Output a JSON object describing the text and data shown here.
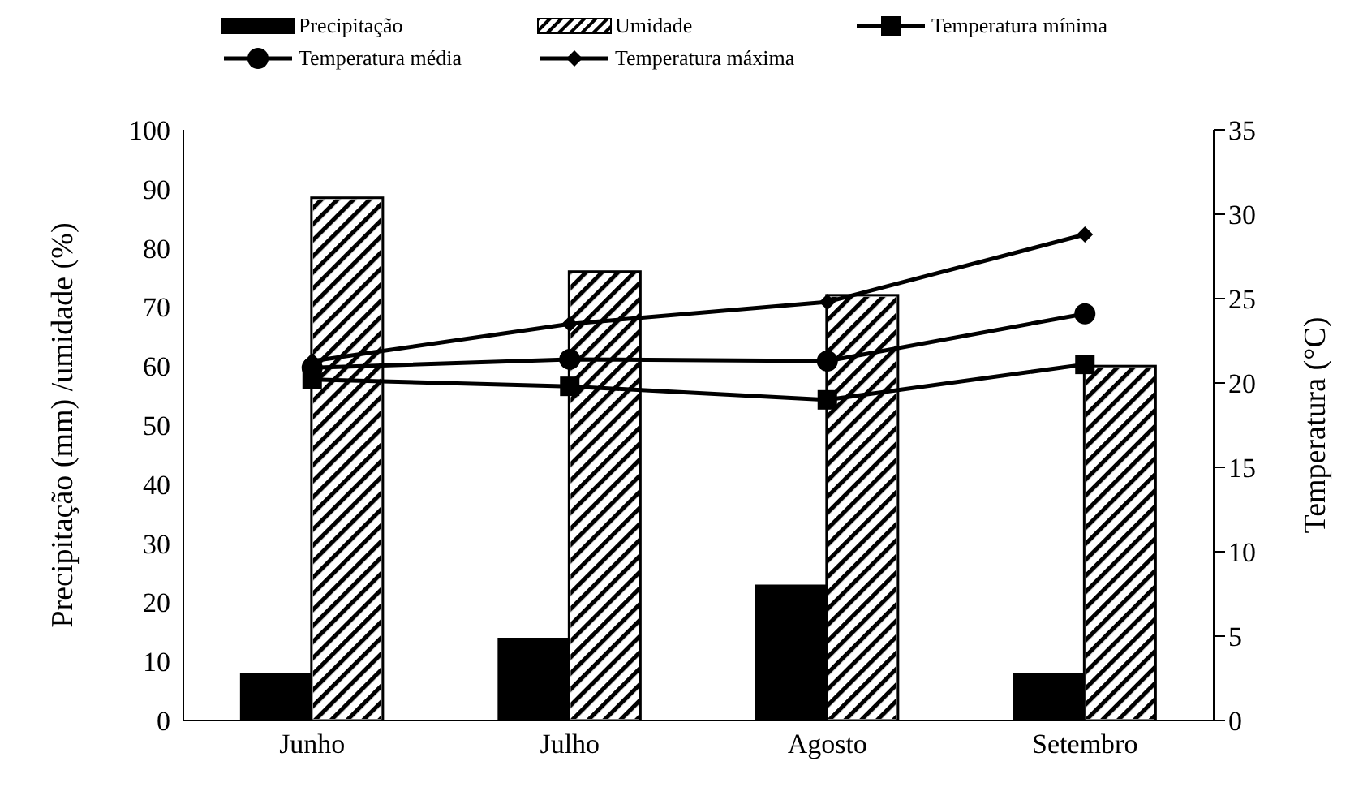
{
  "chart_data": {
    "type": "bar",
    "categories": [
      "Junho",
      "Julho",
      "Agosto",
      "Setembro"
    ],
    "ylabel": "Precipitação (mm) /umidade (%)",
    "y2label": "Temperatura (°C)",
    "ylim": [
      0,
      100
    ],
    "yticks": [
      0,
      10,
      20,
      30,
      40,
      50,
      60,
      70,
      80,
      90,
      100
    ],
    "y2lim": [
      0,
      35
    ],
    "y2ticks": [
      0,
      5,
      10,
      15,
      20,
      25,
      30,
      35
    ],
    "legend": "top",
    "series": [
      {
        "name": "Precipitação",
        "color": "#000000",
        "values": [
          8,
          14,
          23,
          8
        ]
      },
      {
        "name": "Umidade",
        "color": "#ffffff",
        "values": [
          88.5,
          76,
          72,
          60
        ]
      },
      {
        "name": "Temperatura mínima",
        "type": "line",
        "axis": "y2",
        "marker": "square",
        "color": "#000000",
        "values": [
          20.2,
          19.8,
          19.0,
          21.1
        ]
      },
      {
        "name": "Temperatura média",
        "type": "line",
        "axis": "y2",
        "marker": "circle",
        "color": "#000000",
        "values": [
          20.9,
          21.4,
          21.3,
          24.1
        ]
      },
      {
        "name": "Temperatura máxima",
        "type": "line",
        "axis": "y2",
        "marker": "diamond",
        "color": "#000000",
        "values": [
          21.3,
          23.5,
          24.8,
          28.8
        ]
      }
    ]
  }
}
